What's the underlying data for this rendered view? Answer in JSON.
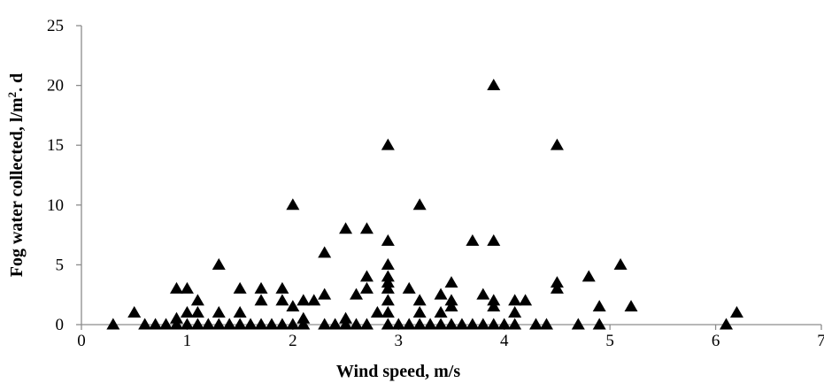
{
  "chart_data": {
    "type": "scatter",
    "xlabel": "Wind speed, m/s",
    "ylabel_prefix": "Fog water collected, l/m",
    "ylabel_sup": "2",
    "ylabel_suffix": ". d",
    "xlim": [
      0,
      7
    ],
    "ylim": [
      0,
      25
    ],
    "xticks": [
      0,
      1,
      2,
      3,
      4,
      5,
      6,
      7
    ],
    "yticks": [
      0,
      5,
      10,
      15,
      20,
      25
    ],
    "grid": false,
    "legend": "none",
    "marker": "filled-triangle",
    "marker_color": "#000000",
    "series": [
      {
        "points": [
          [
            0.3,
            0
          ],
          [
            0.5,
            1
          ],
          [
            0.6,
            0
          ],
          [
            0.7,
            0
          ],
          [
            0.8,
            0
          ],
          [
            0.9,
            0
          ],
          [
            0.9,
            0.5
          ],
          [
            0.9,
            3
          ],
          [
            1.0,
            0
          ],
          [
            1.0,
            1
          ],
          [
            1.0,
            3
          ],
          [
            1.1,
            0
          ],
          [
            1.1,
            1
          ],
          [
            1.1,
            2
          ],
          [
            1.2,
            0
          ],
          [
            1.3,
            0
          ],
          [
            1.3,
            1
          ],
          [
            1.3,
            5
          ],
          [
            1.4,
            0
          ],
          [
            1.5,
            0
          ],
          [
            1.5,
            1
          ],
          [
            1.5,
            3
          ],
          [
            1.6,
            0
          ],
          [
            1.7,
            0
          ],
          [
            1.7,
            2
          ],
          [
            1.7,
            3
          ],
          [
            1.8,
            0
          ],
          [
            1.9,
            0
          ],
          [
            1.9,
            2
          ],
          [
            1.9,
            3
          ],
          [
            2.0,
            0
          ],
          [
            2.0,
            1.5
          ],
          [
            2.0,
            10
          ],
          [
            2.1,
            0
          ],
          [
            2.1,
            0.5
          ],
          [
            2.1,
            2
          ],
          [
            2.2,
            2
          ],
          [
            2.3,
            0
          ],
          [
            2.3,
            2.5
          ],
          [
            2.3,
            6
          ],
          [
            2.4,
            0
          ],
          [
            2.5,
            0
          ],
          [
            2.5,
            0.5
          ],
          [
            2.5,
            8
          ],
          [
            2.6,
            0
          ],
          [
            2.6,
            2.5
          ],
          [
            2.7,
            0
          ],
          [
            2.7,
            3
          ],
          [
            2.7,
            4
          ],
          [
            2.7,
            8
          ],
          [
            2.8,
            1
          ],
          [
            2.9,
            0
          ],
          [
            2.9,
            1
          ],
          [
            2.9,
            2
          ],
          [
            2.9,
            3
          ],
          [
            2.9,
            3.5
          ],
          [
            2.9,
            4
          ],
          [
            2.9,
            5
          ],
          [
            2.9,
            7
          ],
          [
            2.9,
            15
          ],
          [
            3.0,
            0
          ],
          [
            3.1,
            0
          ],
          [
            3.1,
            3
          ],
          [
            3.2,
            0
          ],
          [
            3.2,
            1
          ],
          [
            3.2,
            2
          ],
          [
            3.2,
            10
          ],
          [
            3.3,
            0
          ],
          [
            3.4,
            0
          ],
          [
            3.4,
            1
          ],
          [
            3.4,
            2.5
          ],
          [
            3.5,
            0
          ],
          [
            3.5,
            1.5
          ],
          [
            3.5,
            2
          ],
          [
            3.5,
            3.5
          ],
          [
            3.6,
            0
          ],
          [
            3.7,
            0
          ],
          [
            3.7,
            7
          ],
          [
            3.8,
            0
          ],
          [
            3.8,
            2.5
          ],
          [
            3.9,
            0
          ],
          [
            3.9,
            1.5
          ],
          [
            3.9,
            2
          ],
          [
            3.9,
            7
          ],
          [
            3.9,
            20
          ],
          [
            4.0,
            0
          ],
          [
            4.1,
            0
          ],
          [
            4.1,
            1
          ],
          [
            4.1,
            2
          ],
          [
            4.2,
            2
          ],
          [
            4.3,
            0
          ],
          [
            4.4,
            0
          ],
          [
            4.5,
            3
          ],
          [
            4.5,
            3.5
          ],
          [
            4.5,
            15
          ],
          [
            4.7,
            0
          ],
          [
            4.8,
            4
          ],
          [
            4.9,
            0
          ],
          [
            4.9,
            1.5
          ],
          [
            5.1,
            5
          ],
          [
            5.2,
            1.5
          ],
          [
            6.1,
            0
          ],
          [
            6.2,
            1
          ]
        ]
      }
    ]
  }
}
